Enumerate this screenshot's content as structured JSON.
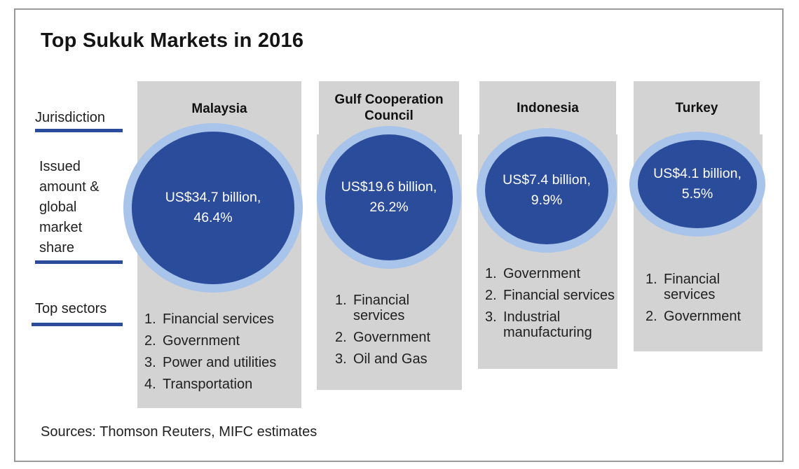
{
  "title": "Top Sukuk Markets in 2016",
  "row_labels": {
    "jurisdiction": "Jurisdiction",
    "issued": [
      "Issued",
      "amount &",
      "global",
      "market",
      "share"
    ],
    "sectors": "Top sectors"
  },
  "source": "Sources: Thomson Reuters, MIFC estimates",
  "colors": {
    "circle_fill": "#2b4c9b",
    "circle_ring": "#a8c4ea",
    "column_bg": "#d3d3d3",
    "rule": "#2b4c9b"
  },
  "chart_data": {
    "type": "table",
    "title": "Top Sukuk Markets in 2016",
    "unit": "US$ billion",
    "jurisdictions": [
      {
        "name": [
          "Malaysia"
        ],
        "amount_text": [
          "US$34.7 billion,",
          "46.4%"
        ],
        "issued_amount": 34.7,
        "global_share_pct": 46.4,
        "top_sectors": [
          "Financial services",
          "Government",
          "Power and utilities",
          "Transportation"
        ]
      },
      {
        "name": [
          "Gulf Cooperation",
          "Council"
        ],
        "amount_text": [
          "US$19.6 billion,",
          "26.2%"
        ],
        "issued_amount": 19.6,
        "global_share_pct": 26.2,
        "top_sectors": [
          "Financial services",
          "Government",
          "Oil and Gas"
        ]
      },
      {
        "name": [
          "Indonesia"
        ],
        "amount_text": [
          "US$7.4 billion,",
          "9.9%"
        ],
        "issued_amount": 7.4,
        "global_share_pct": 9.9,
        "top_sectors": [
          "Government",
          "Financial services",
          "Industrial manufacturing"
        ]
      },
      {
        "name": [
          "Turkey"
        ],
        "amount_text": [
          "US$4.1 billion,",
          "5.5%"
        ],
        "issued_amount": 4.1,
        "global_share_pct": 5.5,
        "top_sectors": [
          "Financial services",
          "Government"
        ]
      }
    ]
  }
}
